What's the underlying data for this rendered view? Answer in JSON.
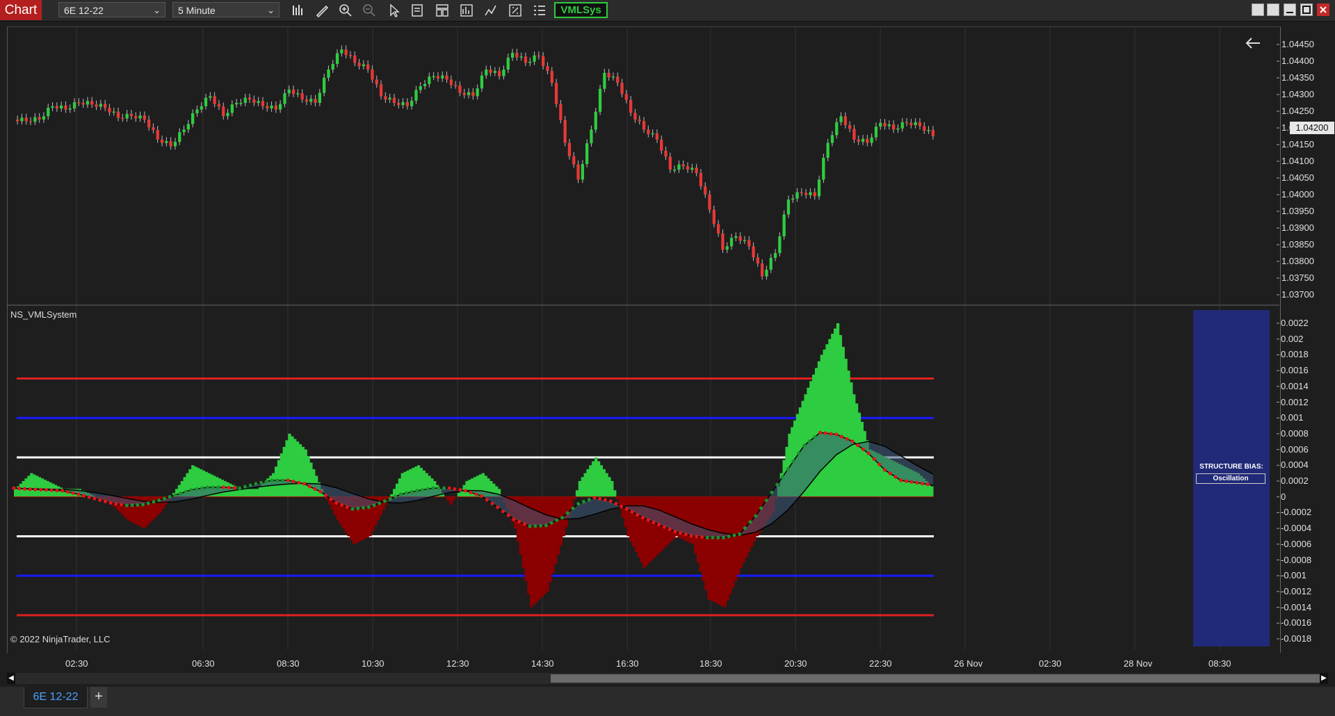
{
  "toolbar": {
    "chart_label": "Chart",
    "instrument": "6E 12-22",
    "interval": "5 Minute",
    "indicator_button": "VMLSys",
    "icons": [
      "bar-type-icon",
      "draw-tool-icon",
      "zoom-in-icon",
      "zoom-out-icon",
      "pointer-icon",
      "data-box-icon",
      "templates-icon",
      "strategies-icon",
      "indicators-icon",
      "properties-icon",
      "chart-trader-icon"
    ]
  },
  "price_axis": {
    "ticks": [
      "1.04450",
      "1.04400",
      "1.04350",
      "1.04300",
      "1.04250",
      "1.04200",
      "1.04150",
      "1.04100",
      "1.04050",
      "1.04000",
      "1.03950",
      "1.03900",
      "1.03850",
      "1.03800",
      "1.03750",
      "1.03700"
    ],
    "current_price": "1.04200"
  },
  "indicator": {
    "title": "NS_VMLSystem",
    "ticks": [
      "0.0022",
      "0.002",
      "0.0018",
      "0.0016",
      "0.0014",
      "0.0012",
      "0.001",
      "0.0008",
      "0.0006",
      "0.0004",
      "0.0002",
      "0",
      "-0.0002",
      "-0.0004",
      "-0.0006",
      "-0.0008",
      "-0.001",
      "-0.0012",
      "-0.0014",
      "-0.0016",
      "-0.0018"
    ],
    "levels": {
      "red": 0.0015,
      "blue": 0.001,
      "white": 0.0005
    },
    "structure_bias_label": "STRUCTURE BIAS:",
    "structure_bias_value": "Oscillation"
  },
  "time_axis": [
    "02:30",
    "06:30",
    "08:30",
    "10:30",
    "12:30",
    "14:30",
    "16:30",
    "18:30",
    "20:30",
    "22:30",
    "26 Nov",
    "02:30",
    "28 Nov",
    "08:30"
  ],
  "copyright": "© 2022 NinjaTrader, LLC",
  "tabs": {
    "active": "6E 12-22",
    "add": "+"
  },
  "colors": {
    "up": "#2ecc40",
    "down": "#e53935",
    "hist_up": "#2ecc40",
    "hist_down": "#8b0000",
    "bias_panel": "#202a78"
  },
  "chart_data": {
    "type": "candlestick",
    "price_series": [
      1.04225,
      1.0423,
      1.0427,
      1.0426,
      1.0428,
      1.04275,
      1.04265,
      1.04235,
      1.0424,
      1.0423,
      1.0417,
      1.0415,
      1.042,
      1.0426,
      1.043,
      1.0424,
      1.0428,
      1.0429,
      1.0427,
      1.0426,
      1.0432,
      1.0429,
      1.0428,
      1.0438,
      1.0444,
      1.044,
      1.0438,
      1.043,
      1.0428,
      1.0427,
      1.0433,
      1.0436,
      1.0435,
      1.0431,
      1.043,
      1.0438,
      1.0436,
      1.0443,
      1.044,
      1.0442,
      1.0434,
      1.0416,
      1.0405,
      1.042,
      1.0437,
      1.0434,
      1.0425,
      1.042,
      1.0417,
      1.0408,
      1.0409,
      1.0407,
      1.0396,
      1.0384,
      1.0388,
      1.0385,
      1.0376,
      1.0383,
      1.0399,
      1.0401,
      1.04,
      1.0416,
      1.0424,
      1.0417,
      1.0416,
      1.0422,
      1.042,
      1.0422,
      1.0421,
      1.0418
    ],
    "osc_series": [
      0.0001,
      0.0003,
      0.0002,
      0.0001,
      0.0001,
      0.0,
      -0.0001,
      -0.0003,
      -0.0004,
      -0.0002,
      0.0001,
      0.0004,
      0.0003,
      0.0002,
      0.0001,
      0.0001,
      0.0003,
      0.0008,
      0.0006,
      0.0001,
      -0.0003,
      -0.0006,
      -0.0005,
      -0.0001,
      0.0003,
      0.0004,
      0.0002,
      -0.0001,
      0.0002,
      0.0003,
      0.0001,
      -0.0004,
      -0.0014,
      -0.0012,
      -0.0005,
      0.0002,
      0.0005,
      0.0002,
      -0.0005,
      -0.0009,
      -0.0007,
      -0.0005,
      -0.0006,
      -0.0013,
      -0.0014,
      -0.0009,
      -0.0005,
      -0.0002,
      0.0008,
      0.0013,
      0.0018,
      0.0022,
      0.0013,
      0.0006,
      0.0005,
      0.0004,
      0.0003,
      0.0001
    ]
  }
}
